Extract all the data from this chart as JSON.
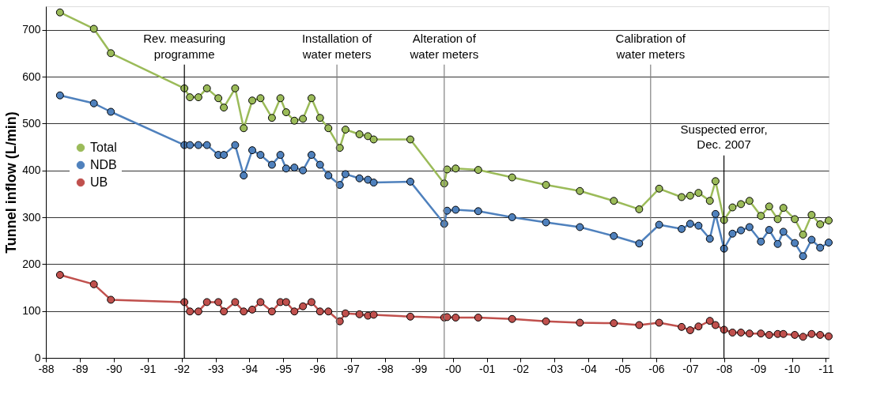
{
  "chart_data": {
    "type": "line",
    "ylabel": "Tunnel inflow (L/min)",
    "x": [
      "1988-06",
      "1989-06",
      "1989-12",
      "1992-02",
      "1992-04",
      "1992-07",
      "1992-10",
      "1993-02",
      "1993-04",
      "1993-08",
      "1993-11",
      "1994-02",
      "1994-05",
      "1994-09",
      "1994-12",
      "1995-02",
      "1995-05",
      "1995-08",
      "1995-11",
      "1996-02",
      "1996-05",
      "1996-09",
      "1996-11",
      "1997-04",
      "1997-07",
      "1997-09",
      "1998-10",
      "1999-10",
      "1999-11",
      "2000-02",
      "2000-10",
      "2001-10",
      "2002-10",
      "2003-10",
      "2004-10",
      "2005-07",
      "2006-02",
      "2006-10",
      "2007-01",
      "2007-04",
      "2007-08",
      "2007-10",
      "2008-01",
      "2008-04",
      "2008-07",
      "2008-10",
      "2009-02",
      "2009-05",
      "2009-08",
      "2009-10",
      "2010-02",
      "2010-05",
      "2010-08",
      "2010-11",
      "2011-02"
    ],
    "series": [
      {
        "name": "Total",
        "color": "#9bbb59",
        "values": [
          737,
          702,
          650,
          575,
          556,
          556,
          575,
          554,
          534,
          575,
          490,
          549,
          554,
          512,
          554,
          524,
          506,
          510,
          554,
          512,
          490,
          448,
          487,
          477,
          473,
          466,
          466,
          372,
          402,
          404,
          401,
          385,
          369,
          356,
          335,
          317,
          361,
          343,
          346,
          352,
          335,
          377,
          294,
          321,
          328,
          335,
          303,
          323,
          296,
          320,
          296,
          263,
          305,
          285,
          293
        ]
      },
      {
        "name": "NDB",
        "color": "#4f81bd",
        "values": [
          560,
          543,
          525,
          454,
          454,
          454,
          454,
          433,
          433,
          454,
          389,
          443,
          433,
          412,
          433,
          404,
          406,
          400,
          433,
          412,
          389,
          369,
          392,
          383,
          380,
          374,
          376,
          286,
          314,
          316,
          313,
          300,
          289,
          279,
          260,
          244,
          284,
          275,
          286,
          282,
          254,
          307,
          233,
          265,
          272,
          279,
          248,
          273,
          243,
          269,
          245,
          217,
          252,
          235,
          246
        ]
      },
      {
        "name": "UB",
        "color": "#c0504d",
        "values": [
          177,
          157,
          124,
          119,
          99,
          99,
          119,
          119,
          99,
          119,
          99,
          103,
          119,
          99,
          119,
          119,
          99,
          110,
          119,
          99,
          99,
          78,
          95,
          93,
          90,
          92,
          88,
          86,
          87,
          86,
          86,
          83,
          78,
          75,
          74,
          70,
          75,
          66,
          59,
          67,
          79,
          70,
          60,
          54,
          54,
          52,
          52,
          49,
          51,
          51,
          49,
          45,
          51,
          49,
          46
        ]
      }
    ],
    "xlim": [
      "1988",
      "2011-02"
    ],
    "xticks": [
      {
        "value": "1988",
        "label": "-88"
      },
      {
        "value": "1989",
        "label": "-89"
      },
      {
        "value": "1990",
        "label": "-90"
      },
      {
        "value": "1991",
        "label": "-91"
      },
      {
        "value": "1992",
        "label": "-92"
      },
      {
        "value": "1993",
        "label": "-93"
      },
      {
        "value": "1994",
        "label": "-94"
      },
      {
        "value": "1995",
        "label": "-95"
      },
      {
        "value": "1996",
        "label": "-96"
      },
      {
        "value": "1997",
        "label": "-97"
      },
      {
        "value": "1998",
        "label": "-98"
      },
      {
        "value": "1999",
        "label": "-99"
      },
      {
        "value": "2000",
        "label": "-00"
      },
      {
        "value": "2001",
        "label": "-01"
      },
      {
        "value": "2002",
        "label": "-02"
      },
      {
        "value": "2003",
        "label": "-03"
      },
      {
        "value": "2004",
        "label": "-04"
      },
      {
        "value": "2005",
        "label": "-05"
      },
      {
        "value": "2006",
        "label": "-06"
      },
      {
        "value": "2007",
        "label": "-07"
      },
      {
        "value": "2008",
        "label": "-08"
      },
      {
        "value": "2009",
        "label": "-09"
      },
      {
        "value": "2010",
        "label": "-10"
      },
      {
        "value": "2011",
        "label": "-11"
      }
    ],
    "ylim": [
      0,
      750
    ],
    "yticks": [
      0,
      100,
      200,
      300,
      400,
      500,
      600,
      700
    ],
    "ref_lines": [
      {
        "axis": "x",
        "value": "1992-02",
        "label": "Rev. measuring\nprogramme",
        "color": "#000000"
      },
      {
        "axis": "x",
        "value": "1996-08",
        "label": "Installation of\nwater meters",
        "color": "#808080"
      },
      {
        "axis": "x",
        "value": "1999-10",
        "label": "Alteration of\nwater meters",
        "color": "#808080"
      },
      {
        "axis": "x",
        "value": "2005-11",
        "label": "Calibration of\nwater meters",
        "color": "#808080"
      },
      {
        "axis": "x",
        "value": "2007-12-31",
        "label": "Suspected error,\nDec. 2007",
        "color": "#000000"
      }
    ],
    "grid": "y",
    "legend": "left",
    "marker": "circle",
    "line_style": "solid"
  }
}
